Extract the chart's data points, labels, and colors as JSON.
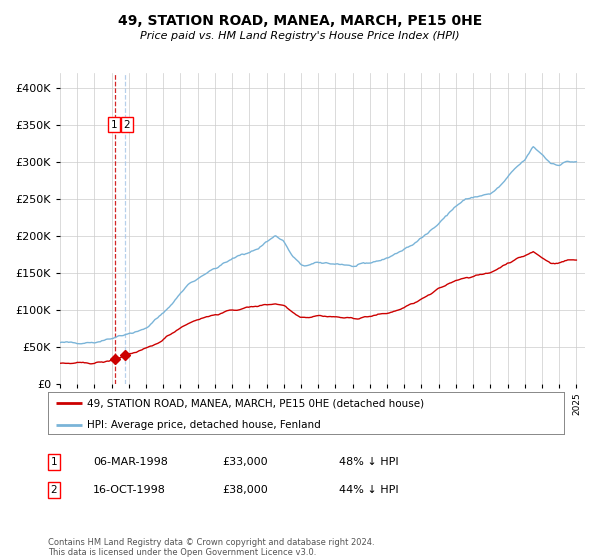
{
  "title": "49, STATION ROAD, MANEA, MARCH, PE15 0HE",
  "subtitle": "Price paid vs. HM Land Registry's House Price Index (HPI)",
  "legend_line1": "49, STATION ROAD, MANEA, MARCH, PE15 0HE (detached house)",
  "legend_line2": "HPI: Average price, detached house, Fenland",
  "transaction1_date": "06-MAR-1998",
  "transaction1_price": "£33,000",
  "transaction1_hpi": "48% ↓ HPI",
  "transaction2_date": "16-OCT-1998",
  "transaction2_price": "£38,000",
  "transaction2_hpi": "44% ↓ HPI",
  "footer": "Contains HM Land Registry data © Crown copyright and database right 2024.\nThis data is licensed under the Open Government Licence v3.0.",
  "hpi_color": "#7ab4d8",
  "price_color": "#cc0000",
  "vline1_color": "#cc0000",
  "vline2_color": "#aac8e8",
  "grid_color": "#cccccc",
  "background_color": "#ffffff",
  "ylim": [
    0,
    420000
  ],
  "xlim_start": 1995.0,
  "xlim_end": 2025.5,
  "hpi_anchors_x": [
    1995.0,
    1996.0,
    1997.0,
    1997.5,
    1998.0,
    1998.5,
    1999.0,
    1999.5,
    2000.0,
    2000.5,
    2001.0,
    2001.5,
    2002.0,
    2002.5,
    2003.0,
    2003.5,
    2004.0,
    2004.5,
    2005.0,
    2005.5,
    2006.0,
    2006.5,
    2007.0,
    2007.5,
    2008.0,
    2008.5,
    2009.0,
    2009.5,
    2010.0,
    2010.5,
    2011.0,
    2011.5,
    2012.0,
    2012.5,
    2013.0,
    2013.5,
    2014.0,
    2014.5,
    2015.0,
    2015.5,
    2016.0,
    2016.5,
    2017.0,
    2017.5,
    2018.0,
    2018.5,
    2019.0,
    2019.5,
    2020.0,
    2020.5,
    2021.0,
    2021.5,
    2022.0,
    2022.5,
    2023.0,
    2023.5,
    2024.0,
    2024.5
  ],
  "hpi_anchors_y": [
    55000,
    55500,
    56000,
    58000,
    62000,
    65000,
    68000,
    70000,
    75000,
    85000,
    95000,
    108000,
    122000,
    135000,
    142000,
    150000,
    155000,
    162000,
    168000,
    174000,
    178000,
    182000,
    192000,
    200000,
    192000,
    172000,
    160000,
    160000,
    163000,
    163000,
    162000,
    161000,
    158000,
    160000,
    163000,
    166000,
    170000,
    175000,
    182000,
    188000,
    196000,
    206000,
    218000,
    228000,
    240000,
    248000,
    252000,
    254000,
    256000,
    265000,
    278000,
    292000,
    302000,
    320000,
    310000,
    298000,
    296000,
    300000
  ],
  "price_anchors_x": [
    1995.0,
    1996.0,
    1997.0,
    1997.5,
    1998.0,
    1998.2,
    1998.8,
    1999.0,
    1999.5,
    2000.0,
    2000.5,
    2001.0,
    2001.5,
    2002.0,
    2002.5,
    2003.0,
    2003.5,
    2004.0,
    2004.5,
    2005.0,
    2005.5,
    2006.0,
    2006.5,
    2007.0,
    2007.5,
    2008.0,
    2008.5,
    2009.0,
    2009.5,
    2010.0,
    2010.5,
    2011.0,
    2011.5,
    2012.0,
    2012.5,
    2013.0,
    2013.5,
    2014.0,
    2014.5,
    2015.0,
    2015.5,
    2016.0,
    2016.5,
    2017.0,
    2017.5,
    2018.0,
    2018.5,
    2019.0,
    2019.5,
    2020.0,
    2020.5,
    2021.0,
    2021.5,
    2022.0,
    2022.5,
    2023.0,
    2023.5,
    2024.0,
    2024.5
  ],
  "price_anchors_y": [
    27000,
    27500,
    28000,
    29000,
    31000,
    33000,
    38000,
    40000,
    43000,
    47000,
    52000,
    60000,
    68000,
    76000,
    82000,
    87000,
    90000,
    93000,
    96000,
    99000,
    101000,
    103000,
    105000,
    107000,
    108000,
    106000,
    97000,
    90000,
    90000,
    92000,
    91000,
    90000,
    89000,
    88000,
    89000,
    91000,
    93000,
    95000,
    98000,
    103000,
    108000,
    114000,
    120000,
    128000,
    134000,
    140000,
    143000,
    145000,
    147000,
    150000,
    156000,
    163000,
    168000,
    173000,
    178000,
    170000,
    163000,
    163000,
    167000
  ],
  "trans1_x": 1998.17,
  "trans1_y": 33000,
  "trans2_x": 1998.79,
  "trans2_y": 38000
}
